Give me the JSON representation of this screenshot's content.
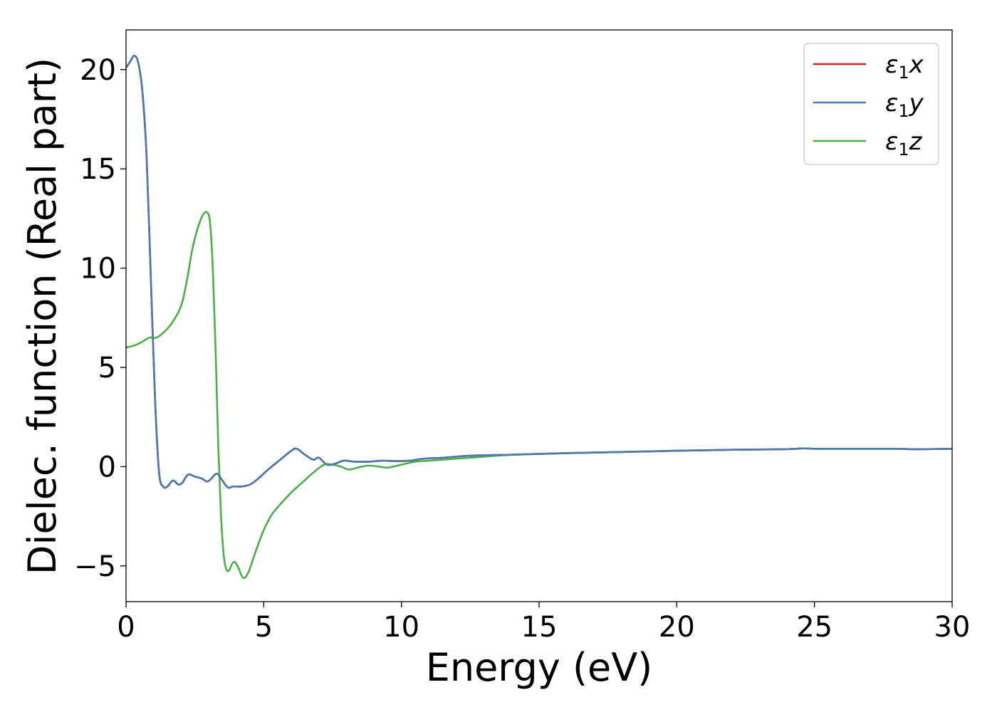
{
  "chart_data": {
    "type": "line",
    "title": "",
    "xlabel": "Energy (eV)",
    "ylabel": "Dielec. function (Real part)",
    "xlim": [
      0,
      30
    ],
    "ylim": [
      -6.8,
      22
    ],
    "xticks": [
      0,
      5,
      10,
      15,
      20,
      25,
      30
    ],
    "yticks": [
      -5,
      0,
      5,
      10,
      15,
      20
    ],
    "xtick_labels": [
      "0",
      "5",
      "10",
      "15",
      "20",
      "25",
      "30"
    ],
    "ytick_labels": [
      "−5",
      "0",
      "5",
      "10",
      "15",
      "20"
    ],
    "grid": false,
    "legend_position": "top-right",
    "series": [
      {
        "name": "ε1x",
        "legend_base": "ε",
        "legend_sub": "1",
        "legend_var": "x",
        "color": "#e41a1c",
        "points": [
          [
            0,
            20.1
          ],
          [
            0.15,
            20.4
          ],
          [
            0.3,
            20.7
          ],
          [
            0.45,
            20.3
          ],
          [
            0.6,
            18.8
          ],
          [
            0.75,
            15.5
          ],
          [
            0.9,
            9.5
          ],
          [
            1.05,
            3.5
          ],
          [
            1.2,
            -0.3
          ],
          [
            1.35,
            -1.0
          ],
          [
            1.5,
            -1.0
          ],
          [
            1.7,
            -0.7
          ],
          [
            1.9,
            -0.9
          ],
          [
            2.05,
            -0.8
          ],
          [
            2.25,
            -0.4
          ],
          [
            2.5,
            -0.5
          ],
          [
            2.75,
            -0.6
          ],
          [
            2.95,
            -0.75
          ],
          [
            3.1,
            -0.6
          ],
          [
            3.3,
            -0.35
          ],
          [
            3.5,
            -0.7
          ],
          [
            3.7,
            -1.05
          ],
          [
            3.9,
            -1.0
          ],
          [
            4.2,
            -1.0
          ],
          [
            4.5,
            -0.9
          ],
          [
            4.8,
            -0.6
          ],
          [
            5.2,
            -0.1
          ],
          [
            5.6,
            0.35
          ],
          [
            6.0,
            0.8
          ],
          [
            6.2,
            0.9
          ],
          [
            6.5,
            0.6
          ],
          [
            6.8,
            0.35
          ],
          [
            7.0,
            0.45
          ],
          [
            7.3,
            0.1
          ],
          [
            7.6,
            0.15
          ],
          [
            7.9,
            0.3
          ],
          [
            8.3,
            0.25
          ],
          [
            8.8,
            0.25
          ],
          [
            9.3,
            0.3
          ],
          [
            9.8,
            0.28
          ],
          [
            10.3,
            0.3
          ],
          [
            10.8,
            0.4
          ],
          [
            11.5,
            0.45
          ],
          [
            12.5,
            0.55
          ],
          [
            14,
            0.6
          ],
          [
            16,
            0.68
          ],
          [
            18,
            0.74
          ],
          [
            20,
            0.8
          ],
          [
            22,
            0.85
          ],
          [
            24,
            0.88
          ],
          [
            24.6,
            0.92
          ],
          [
            25,
            0.9
          ],
          [
            26,
            0.9
          ],
          [
            27,
            0.9
          ],
          [
            28,
            0.9
          ],
          [
            28.5,
            0.88
          ],
          [
            29,
            0.88
          ],
          [
            30,
            0.9
          ]
        ]
      },
      {
        "name": "ε1y",
        "legend_base": "ε",
        "legend_sub": "1",
        "legend_var": "y",
        "color": "#4a7bb0",
        "points": [
          [
            0,
            20.1
          ],
          [
            0.15,
            20.4
          ],
          [
            0.3,
            20.7
          ],
          [
            0.45,
            20.3
          ],
          [
            0.6,
            18.8
          ],
          [
            0.75,
            15.5
          ],
          [
            0.9,
            9.5
          ],
          [
            1.05,
            3.5
          ],
          [
            1.2,
            -0.3
          ],
          [
            1.35,
            -1.0
          ],
          [
            1.5,
            -1.0
          ],
          [
            1.7,
            -0.7
          ],
          [
            1.9,
            -0.9
          ],
          [
            2.05,
            -0.8
          ],
          [
            2.25,
            -0.4
          ],
          [
            2.5,
            -0.5
          ],
          [
            2.75,
            -0.6
          ],
          [
            2.95,
            -0.75
          ],
          [
            3.1,
            -0.6
          ],
          [
            3.3,
            -0.35
          ],
          [
            3.5,
            -0.7
          ],
          [
            3.7,
            -1.05
          ],
          [
            3.9,
            -1.0
          ],
          [
            4.2,
            -1.0
          ],
          [
            4.5,
            -0.9
          ],
          [
            4.8,
            -0.6
          ],
          [
            5.2,
            -0.1
          ],
          [
            5.6,
            0.35
          ],
          [
            6.0,
            0.8
          ],
          [
            6.2,
            0.9
          ],
          [
            6.5,
            0.6
          ],
          [
            6.8,
            0.35
          ],
          [
            7.0,
            0.45
          ],
          [
            7.3,
            0.1
          ],
          [
            7.6,
            0.15
          ],
          [
            7.9,
            0.3
          ],
          [
            8.3,
            0.25
          ],
          [
            8.8,
            0.25
          ],
          [
            9.3,
            0.3
          ],
          [
            9.8,
            0.28
          ],
          [
            10.3,
            0.3
          ],
          [
            10.8,
            0.4
          ],
          [
            11.5,
            0.45
          ],
          [
            12.5,
            0.55
          ],
          [
            14,
            0.6
          ],
          [
            16,
            0.68
          ],
          [
            18,
            0.74
          ],
          [
            20,
            0.8
          ],
          [
            22,
            0.85
          ],
          [
            24,
            0.88
          ],
          [
            24.6,
            0.92
          ],
          [
            25,
            0.9
          ],
          [
            26,
            0.9
          ],
          [
            27,
            0.9
          ],
          [
            28,
            0.9
          ],
          [
            28.5,
            0.88
          ],
          [
            29,
            0.88
          ],
          [
            30,
            0.9
          ]
        ]
      },
      {
        "name": "ε1z",
        "legend_base": "ε",
        "legend_sub": "1",
        "legend_var": "z",
        "color": "#4daf4a",
        "points": [
          [
            0,
            6.0
          ],
          [
            0.3,
            6.1
          ],
          [
            0.6,
            6.3
          ],
          [
            0.85,
            6.5
          ],
          [
            1.1,
            6.5
          ],
          [
            1.4,
            6.8
          ],
          [
            1.7,
            7.3
          ],
          [
            2.0,
            8.1
          ],
          [
            2.2,
            9.3
          ],
          [
            2.4,
            10.9
          ],
          [
            2.6,
            12.0
          ],
          [
            2.8,
            12.7
          ],
          [
            2.95,
            12.8
          ],
          [
            3.05,
            12.3
          ],
          [
            3.15,
            10.0
          ],
          [
            3.25,
            6.0
          ],
          [
            3.35,
            1.0
          ],
          [
            3.45,
            -2.5
          ],
          [
            3.55,
            -4.5
          ],
          [
            3.65,
            -5.2
          ],
          [
            3.75,
            -5.2
          ],
          [
            3.9,
            -4.8
          ],
          [
            4.05,
            -5.0
          ],
          [
            4.25,
            -5.6
          ],
          [
            4.45,
            -5.3
          ],
          [
            4.7,
            -4.3
          ],
          [
            5.0,
            -3.2
          ],
          [
            5.3,
            -2.4
          ],
          [
            5.6,
            -1.9
          ],
          [
            6.0,
            -1.3
          ],
          [
            6.4,
            -0.8
          ],
          [
            6.8,
            -0.3
          ],
          [
            7.2,
            0.1
          ],
          [
            7.5,
            0.1
          ],
          [
            7.8,
            0.0
          ],
          [
            8.1,
            -0.15
          ],
          [
            8.4,
            -0.05
          ],
          [
            8.8,
            0.05
          ],
          [
            9.2,
            0.0
          ],
          [
            9.5,
            -0.05
          ],
          [
            10.0,
            0.1
          ],
          [
            10.5,
            0.25
          ],
          [
            11,
            0.3
          ],
          [
            12,
            0.4
          ],
          [
            13,
            0.5
          ],
          [
            14,
            0.6
          ],
          [
            16,
            0.68
          ],
          [
            18,
            0.74
          ],
          [
            20,
            0.8
          ],
          [
            22,
            0.85
          ],
          [
            24,
            0.88
          ],
          [
            24.6,
            0.92
          ],
          [
            25,
            0.9
          ],
          [
            26,
            0.9
          ],
          [
            27,
            0.9
          ],
          [
            28,
            0.9
          ],
          [
            28.5,
            0.88
          ],
          [
            29,
            0.88
          ],
          [
            30,
            0.9
          ]
        ]
      }
    ]
  }
}
